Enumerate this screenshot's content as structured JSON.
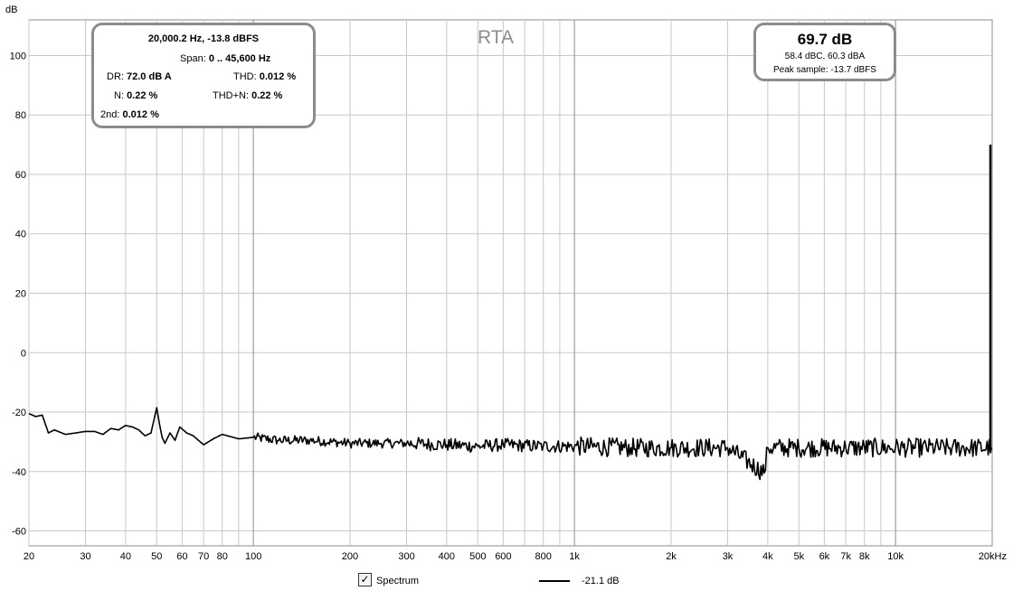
{
  "chart_data": {
    "type": "line",
    "title": "RTA",
    "ylabel": "dB",
    "xlabel": "",
    "x_scale": "log",
    "xlim": [
      20,
      20000
    ],
    "ylim": [
      -65,
      112
    ],
    "grid": true,
    "y_ticks": [
      100,
      80,
      60,
      40,
      20,
      0,
      -20,
      -40,
      -60
    ],
    "y_tick_labels": [
      "100",
      "80",
      "60",
      "40",
      "20",
      "0",
      "-20",
      "-40",
      "-60"
    ],
    "x_ticks": [
      20,
      30,
      40,
      50,
      60,
      70,
      80,
      100,
      200,
      300,
      400,
      500,
      600,
      800,
      1000,
      2000,
      3000,
      4000,
      5000,
      6000,
      7000,
      8000,
      10000,
      20000
    ],
    "x_tick_labels": [
      "20",
      "30",
      "40",
      "50",
      "60",
      "70",
      "80",
      "100",
      "200",
      "300",
      "400",
      "500",
      "600",
      "800",
      "1k",
      "2k",
      "3k",
      "4k",
      "5k",
      "6k",
      "7k",
      "8k",
      "10k",
      "20kHz"
    ],
    "series": [
      {
        "name": "Spectrum",
        "color": "#000000",
        "x": [
          20,
          21,
          22,
          23,
          24,
          26,
          28,
          30,
          32,
          34,
          36,
          38,
          40,
          42,
          44,
          46,
          48,
          50,
          51,
          52,
          53,
          55,
          57,
          59,
          62,
          65,
          70,
          75,
          80,
          90,
          100,
          120,
          150,
          200,
          250,
          300,
          400,
          500,
          600,
          800,
          1000,
          1500,
          2000,
          3000,
          3900,
          4000,
          5000,
          7000,
          10000,
          15000,
          19900
        ],
        "y": [
          -20.5,
          -21.5,
          -21,
          -27,
          -26,
          -27.5,
          -27,
          -26.5,
          -26.5,
          -27.5,
          -25.5,
          -26,
          -24.5,
          -25,
          -26,
          -28,
          -27,
          -18.5,
          -24,
          -28.5,
          -30.5,
          -27,
          -29.5,
          -25,
          -27,
          -28,
          -31,
          -29,
          -27.5,
          -29,
          -28.5,
          -29.5,
          -29.5,
          -30.5,
          -30.5,
          -30.5,
          -31,
          -31.5,
          -31,
          -31.5,
          -31.5,
          -32,
          -32,
          -32,
          -40.5,
          -32,
          -32,
          -32,
          -32,
          -32,
          -32
        ]
      }
    ],
    "peak": {
      "x": 20000,
      "y": 70
    }
  },
  "info_left": {
    "line1": "20,000.2 Hz, -13.8 dBFS",
    "span_label": "Span:",
    "span_value": "0 .. 45,600 Hz",
    "dr_label": "DR:",
    "dr_value": "72.0 dB A",
    "thd_label": "THD:",
    "thd_value": "0.012 %",
    "n_label": "N:",
    "n_value": "0.22 %",
    "thdn_label": "THD+N:",
    "thdn_value": "0.22 %",
    "second_label": "2nd:",
    "second_value": "0.012 %"
  },
  "info_right": {
    "level": "69.7 dB",
    "weighted": "58.4 dBC, 60.3 dBA",
    "peak_sample": "Peak sample: -13.7 dBFS"
  },
  "legend": {
    "checkbox_mark": "✓",
    "label": "Spectrum",
    "value": "-21.1 dB"
  },
  "colors": {
    "grid": "#c8c8c8",
    "grid_major": "#8c8c8c",
    "trace": "#000000",
    "box_border": "#8c8c8c",
    "title": "#8c8c8c"
  }
}
